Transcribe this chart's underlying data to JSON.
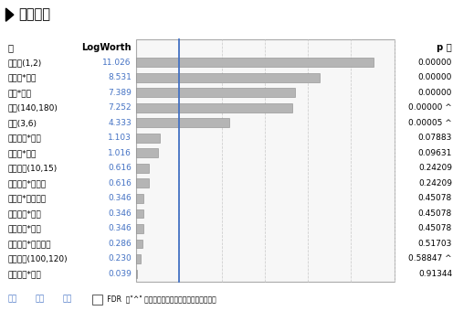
{
  "title": "效应汇总",
  "col_source": "源",
  "col_logworth": "LogWorth",
  "col_pvalue": "p 值",
  "rows": [
    {
      "name": "催化剂(1,2)",
      "logworth": 11.026,
      "pvalue": "0.00000",
      "caret": false
    },
    {
      "name": "催化剂*温度",
      "logworth": 8.531,
      "pvalue": "0.00000",
      "caret": false
    },
    {
      "name": "温度*浓度",
      "logworth": 7.389,
      "pvalue": "0.00000",
      "caret": false
    },
    {
      "name": "温度(140,180)",
      "logworth": 7.252,
      "pvalue": "0.00000",
      "caret": true
    },
    {
      "name": "浓度(3,6)",
      "logworth": 4.333,
      "pvalue": "0.00005",
      "caret": true
    },
    {
      "name": "搅拌速度*温度",
      "logworth": 1.103,
      "pvalue": "0.07883",
      "caret": false
    },
    {
      "name": "催化剂*浓度",
      "logworth": 1.016,
      "pvalue": "0.09631",
      "caret": false
    },
    {
      "name": "进料速度(10,15)",
      "logworth": 0.616,
      "pvalue": "0.24209",
      "caret": false
    },
    {
      "name": "进料速度*催化剂",
      "logworth": 0.616,
      "pvalue": "0.24209",
      "caret": false
    },
    {
      "name": "催化剂*搅拌速度",
      "logworth": 0.346,
      "pvalue": "0.45078",
      "caret": false
    },
    {
      "name": "进料速度*温度",
      "logworth": 0.346,
      "pvalue": "0.45078",
      "caret": false
    },
    {
      "name": "搅拌速度*浓度",
      "logworth": 0.346,
      "pvalue": "0.45078",
      "caret": false
    },
    {
      "name": "进料速度*搅拌速度",
      "logworth": 0.286,
      "pvalue": "0.51703",
      "caret": false
    },
    {
      "name": "搅拌速度(100,120)",
      "logworth": 0.23,
      "pvalue": "0.58847",
      "caret": true
    },
    {
      "name": "进料速度*浓度",
      "logworth": 0.039,
      "pvalue": "0.91344",
      "caret": false
    }
  ],
  "bar_color": "#b5b5b5",
  "bar_border_color": "#888888",
  "ref_line_color": "#4472c4",
  "grid_color": "#cccccc",
  "bg_color": "#ffffff",
  "title_bg": "#dce6f1",
  "logworth_threshold": 2.0,
  "bar_max": 12.0,
  "link_color": "#4472c4",
  "grid_vals": [
    2,
    4,
    6,
    8,
    10,
    12
  ]
}
